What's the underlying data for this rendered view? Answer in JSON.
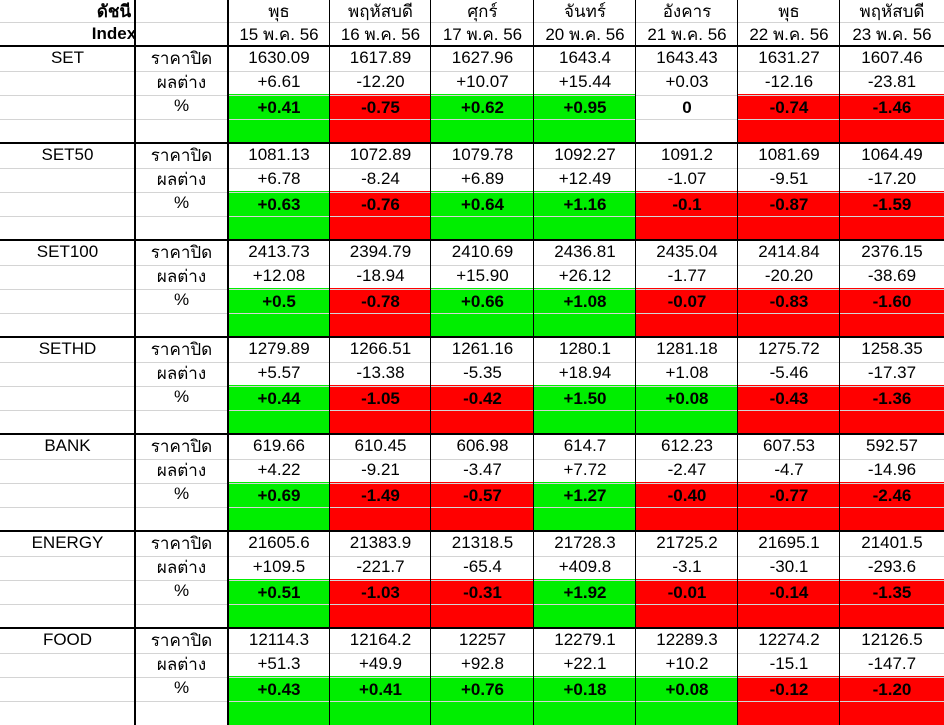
{
  "header": {
    "index_label": [
      "ดัชนี",
      "Index"
    ],
    "days": [
      "พุธ",
      "พฤหัสบดี",
      "ศุกร์",
      "จันทร์",
      "อังคาร",
      "พุธ",
      "พฤหัสบดี"
    ],
    "dates": [
      "15 พ.ค. 56",
      "16 พ.ค. 56",
      "17 พ.ค. 56",
      "20 พ.ค. 56",
      "21 พ.ค. 56",
      "22 พ.ค. 56",
      "23 พ.ค. 56"
    ]
  },
  "row_labels": [
    "ราคาปิด",
    "ผลต่าง",
    "%"
  ],
  "indices": [
    {
      "name": "SET",
      "close": [
        "1630.09",
        "1617.89",
        "1627.96",
        "1643.4",
        "1643.43",
        "1631.27",
        "1607.46"
      ],
      "change": [
        "+6.61",
        "-12.20",
        "+10.07",
        "+15.44",
        "+0.03",
        "-12.16",
        "-23.81"
      ],
      "percent": [
        "+0.41",
        "-0.75",
        "+0.62",
        "+0.95",
        "0",
        "-0.74",
        "-1.46"
      ]
    },
    {
      "name": "SET50",
      "close": [
        "1081.13",
        "1072.89",
        "1079.78",
        "1092.27",
        "1091.2",
        "1081.69",
        "1064.49"
      ],
      "change": [
        "+6.78",
        "-8.24",
        "+6.89",
        "+12.49",
        "-1.07",
        "-9.51",
        "-17.20"
      ],
      "percent": [
        "+0.63",
        "-0.76",
        "+0.64",
        "+1.16",
        "-0.1",
        "-0.87",
        "-1.59"
      ]
    },
    {
      "name": "SET100",
      "close": [
        "2413.73",
        "2394.79",
        "2410.69",
        "2436.81",
        "2435.04",
        "2414.84",
        "2376.15"
      ],
      "change": [
        "+12.08",
        "-18.94",
        "+15.90",
        "+26.12",
        "-1.77",
        "-20.20",
        "-38.69"
      ],
      "percent": [
        "+0.5",
        "-0.78",
        "+0.66",
        "+1.08",
        "-0.07",
        "-0.83",
        "-1.60"
      ]
    },
    {
      "name": "SETHD",
      "close": [
        "1279.89",
        "1266.51",
        "1261.16",
        "1280.1",
        "1281.18",
        "1275.72",
        "1258.35"
      ],
      "change": [
        "+5.57",
        "-13.38",
        "-5.35",
        "+18.94",
        "+1.08",
        "-5.46",
        "-17.37"
      ],
      "percent": [
        "+0.44",
        "-1.05",
        "-0.42",
        "+1.50",
        "+0.08",
        "-0.43",
        "-1.36"
      ]
    },
    {
      "name": "BANK",
      "close": [
        "619.66",
        "610.45",
        "606.98",
        "614.7",
        "612.23",
        "607.53",
        "592.57"
      ],
      "change": [
        "+4.22",
        "-9.21",
        "-3.47",
        "+7.72",
        "-2.47",
        "-4.7",
        "-14.96"
      ],
      "percent": [
        "+0.69",
        "-1.49",
        "-0.57",
        "+1.27",
        "-0.40",
        "-0.77",
        "-2.46"
      ]
    },
    {
      "name": "ENERGY",
      "close": [
        "21605.6",
        "21383.9",
        "21318.5",
        "21728.3",
        "21725.2",
        "21695.1",
        "21401.5"
      ],
      "change": [
        "+109.5",
        "-221.7",
        "-65.4",
        "+409.8",
        "-3.1",
        "-30.1",
        "-293.6"
      ],
      "percent": [
        "+0.51",
        "-1.03",
        "-0.31",
        "+1.92",
        "-0.01",
        "-0.14",
        "-1.35"
      ]
    },
    {
      "name": "FOOD",
      "close": [
        "12114.3",
        "12164.2",
        "12257",
        "12279.1",
        "12289.3",
        "12274.2",
        "12126.5"
      ],
      "change": [
        "+51.3",
        "+49.9",
        "+92.8",
        "+22.1",
        "+10.2",
        "-15.1",
        "-147.7"
      ],
      "percent": [
        "+0.43",
        "+0.41",
        "+0.76",
        "+0.18",
        "+0.08",
        "-0.12",
        "-1.20"
      ]
    }
  ]
}
